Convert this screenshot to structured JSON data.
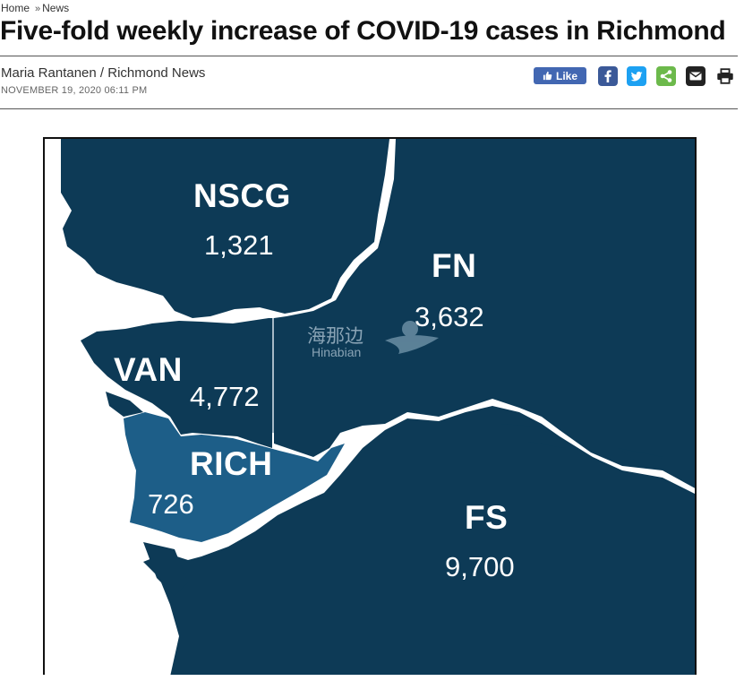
{
  "breadcrumb": {
    "home": "Home",
    "separator": "»",
    "section": "News"
  },
  "article": {
    "title": "Five-fold weekly increase of COVID-19 cases in Richmond",
    "byline": "Maria Rantanen / Richmond News",
    "date": "NOVEMBER 19, 2020 06:11 PM"
  },
  "social": {
    "like_label": "Like",
    "icons": [
      "facebook-icon",
      "twitter-icon",
      "share-icon",
      "email-icon",
      "print-icon"
    ],
    "colors": {
      "like": "#4267b2",
      "facebook": "#3b5998",
      "twitter": "#1da1f2",
      "share": "#6cb94b",
      "email": "#222222",
      "print": "#222222"
    }
  },
  "map": {
    "colors": {
      "region_dark": "#0d3a56",
      "region_richmond": "#1d5e88",
      "water": "#ffffff"
    },
    "regions": [
      {
        "code": "NSCG",
        "count": "1,321"
      },
      {
        "code": "FN",
        "count": "3,632"
      },
      {
        "code": "VAN",
        "count": "4,772"
      },
      {
        "code": "RICH",
        "count": "726"
      },
      {
        "code": "FS",
        "count": "9,700"
      }
    ],
    "watermark": {
      "chinese": "海那边",
      "english": "Hinabian"
    }
  }
}
